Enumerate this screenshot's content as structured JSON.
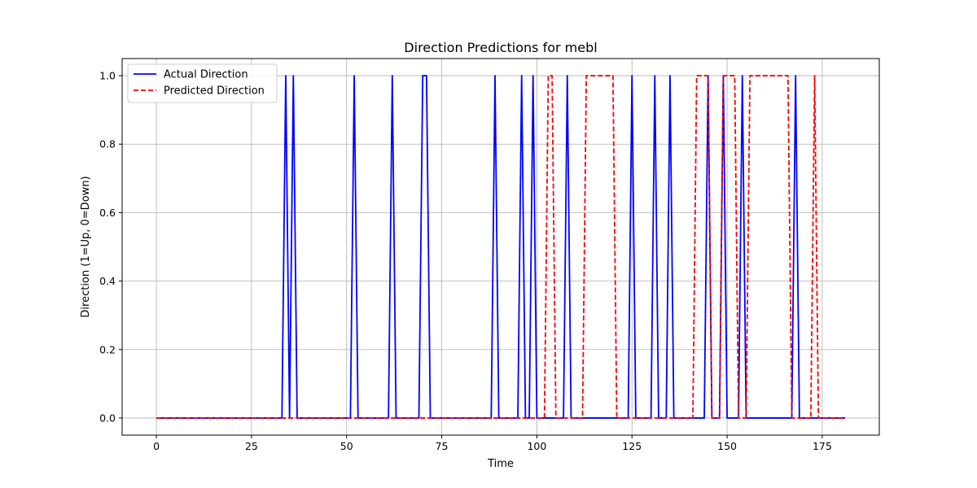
{
  "chart_data": {
    "type": "line",
    "title": "Direction Predictions for mebl",
    "xlabel": "Time",
    "ylabel": "Direction (1=Up, 0=Down)",
    "xlim": [
      -9,
      190
    ],
    "ylim": [
      -0.05,
      1.05
    ],
    "x_ticks": [
      0,
      25,
      50,
      75,
      100,
      125,
      150,
      175
    ],
    "y_ticks": [
      0.0,
      0.2,
      0.4,
      0.6,
      0.8,
      1.0
    ],
    "y_tick_labels": [
      "0.0",
      "0.2",
      "0.4",
      "0.6",
      "0.8",
      "1.0"
    ],
    "grid": true,
    "legend_position": "top-left",
    "x_start": 0,
    "series": [
      {
        "name": "Actual Direction",
        "color": "#0000ff",
        "style": "solid",
        "up_indices": [
          34,
          36,
          52,
          62,
          70,
          71,
          89,
          96,
          99,
          108,
          125,
          131,
          135,
          145,
          149,
          154,
          168
        ],
        "length": 182
      },
      {
        "name": "Predicted Direction",
        "color": "#ff0000",
        "style": "dashed",
        "up_indices": [
          103,
          104,
          113,
          114,
          115,
          116,
          117,
          118,
          119,
          120,
          142,
          143,
          144,
          145,
          149,
          150,
          151,
          152,
          156,
          157,
          158,
          159,
          160,
          161,
          162,
          163,
          164,
          165,
          166,
          173
        ],
        "length": 182
      }
    ]
  }
}
